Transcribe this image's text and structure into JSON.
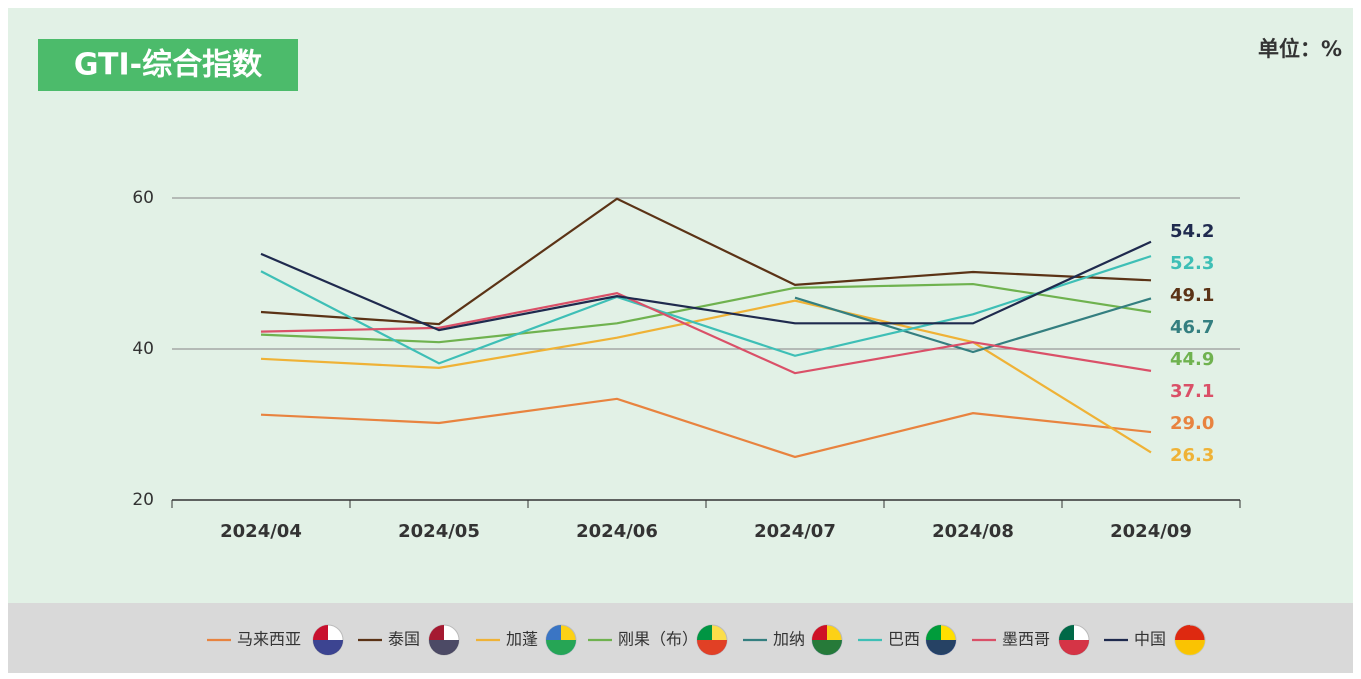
{
  "chart_data": {
    "type": "line",
    "title": "GTI-综合指数",
    "unit_label": "单位：%",
    "categories": [
      "2024/04",
      "2024/05",
      "2024/06",
      "2024/07",
      "2024/08",
      "2024/09"
    ],
    "ylim": [
      20,
      60
    ],
    "yticks": [
      20,
      40,
      60
    ],
    "grid": true,
    "legend": "bottom",
    "series": [
      {
        "name": "马来西亚",
        "color": "#e8833f",
        "values": [
          31.3,
          30.2,
          33.4,
          25.7,
          31.5,
          29.0
        ],
        "value_labels": [
          null,
          null,
          null,
          null,
          null,
          "29.0"
        ]
      },
      {
        "name": "泰国",
        "color": "#5b3316",
        "values": [
          44.9,
          43.3,
          59.9,
          48.5,
          50.2,
          49.1
        ],
        "value_labels": [
          null,
          null,
          null,
          null,
          null,
          "49.1"
        ]
      },
      {
        "name": "加蓬",
        "color": "#efb236",
        "values": [
          38.7,
          37.5,
          41.5,
          46.4,
          40.9,
          26.3
        ],
        "value_labels": [
          null,
          null,
          null,
          null,
          null,
          "26.3"
        ]
      },
      {
        "name": "刚果（布）",
        "color": "#6fb24f",
        "values": [
          41.9,
          40.9,
          43.4,
          48.1,
          48.6,
          44.9
        ],
        "value_labels": [
          null,
          null,
          null,
          null,
          null,
          "44.9"
        ]
      },
      {
        "name": "加纳",
        "color": "#347f80",
        "values": [
          null,
          null,
          null,
          46.8,
          39.6,
          46.7
        ],
        "value_labels": [
          null,
          null,
          null,
          null,
          null,
          "46.7"
        ]
      },
      {
        "name": "巴西",
        "color": "#3ebfb6",
        "values": [
          50.3,
          38.1,
          46.9,
          39.1,
          44.6,
          52.3
        ],
        "value_labels": [
          null,
          null,
          null,
          null,
          null,
          "52.3"
        ]
      },
      {
        "name": "墨西哥",
        "color": "#da5068",
        "values": [
          42.3,
          42.8,
          47.4,
          36.8,
          40.9,
          37.1
        ],
        "value_labels": [
          null,
          null,
          null,
          null,
          null,
          "37.1"
        ]
      },
      {
        "name": "中国",
        "color": "#1f2a4e",
        "values": [
          52.6,
          42.5,
          47.0,
          43.4,
          43.4,
          54.2
        ],
        "value_labels": [
          null,
          null,
          null,
          null,
          null,
          "54.2"
        ]
      }
    ]
  }
}
